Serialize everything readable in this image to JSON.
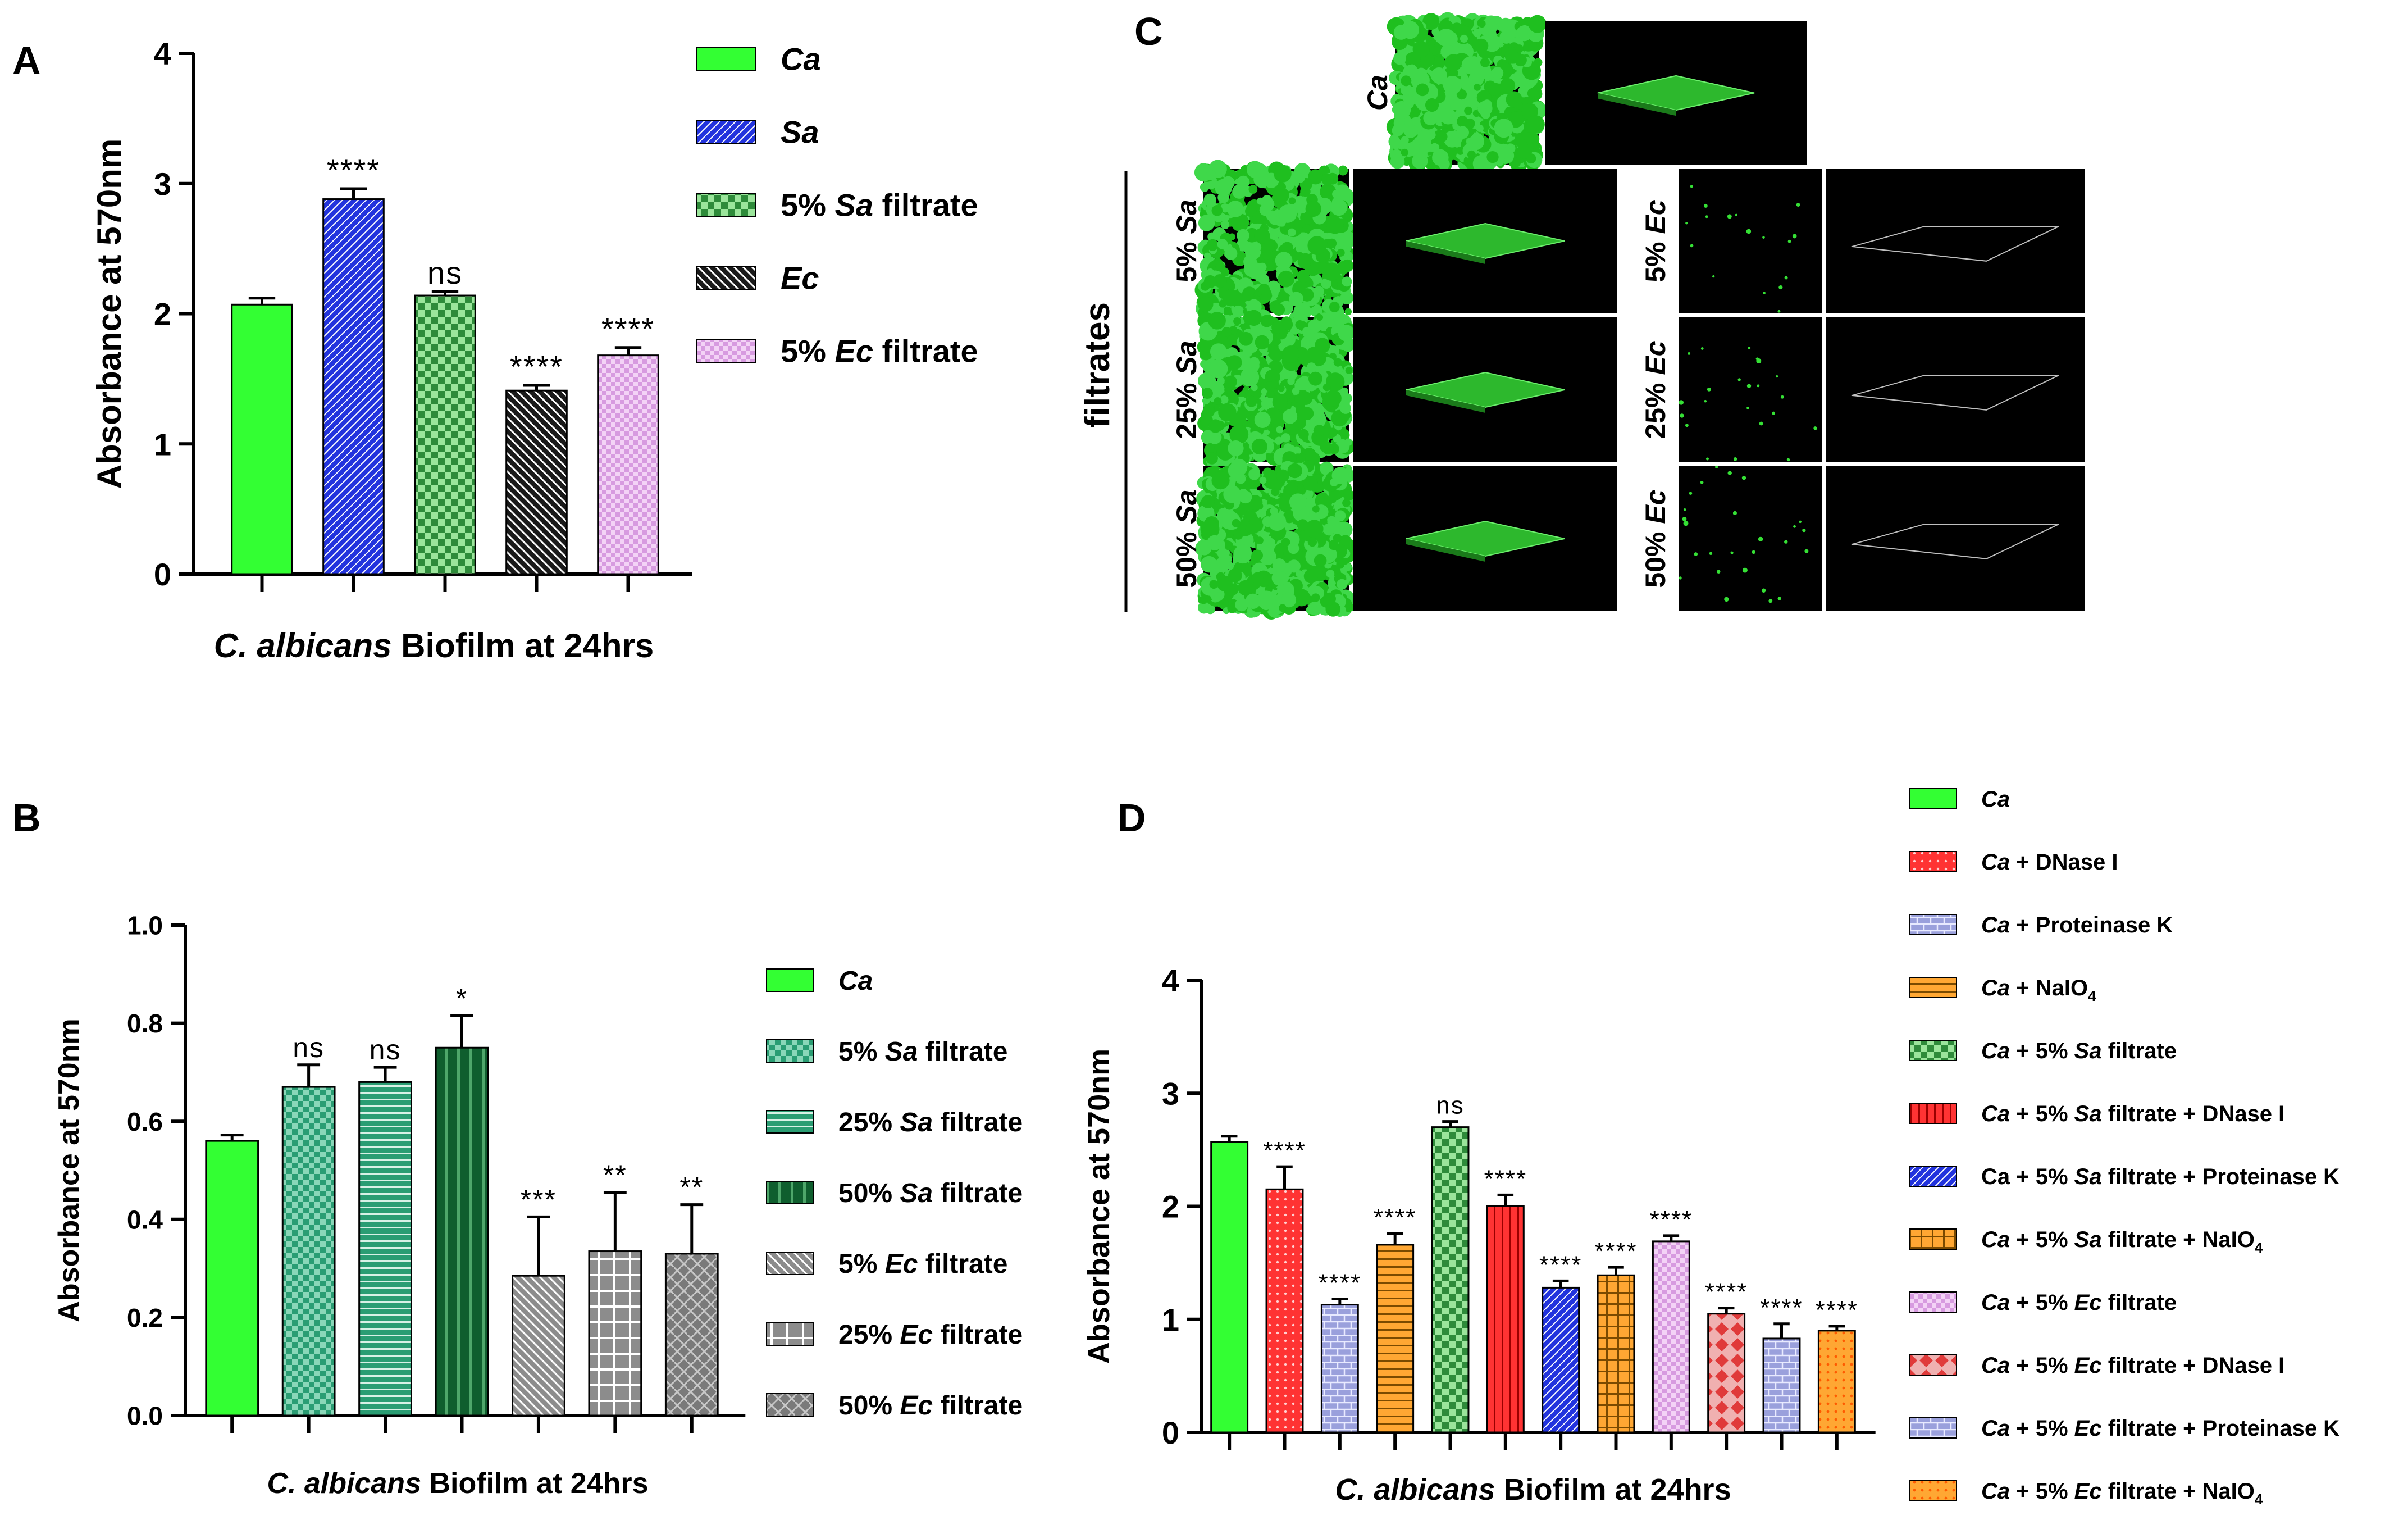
{
  "panels": {
    "A": "A",
    "B": "B",
    "C": "C",
    "D": "D"
  },
  "colors": {
    "ca_green": "#33ff33",
    "sa_blue": "#2233dd",
    "checker_green": "#2e8b3a",
    "teal": "#2a9d73",
    "dark_green": "#0f5e2e",
    "gray": "#8c8c8c",
    "black": "#1a1a1a",
    "pink": "#d79be0",
    "red": "#ff3333",
    "lavender": "#9aa0dc",
    "orange": "#ffa733",
    "confocal_bg": "#000000",
    "confocal_green": "#1fbf1f"
  },
  "chart_data": [
    {
      "panel": "A",
      "type": "bar",
      "categories": [
        "Ca",
        "Sa",
        "5% Sa filtrate",
        "Ec",
        "5% Ec filtrate"
      ],
      "values": [
        2.07,
        2.88,
        2.14,
        1.41,
        1.68
      ],
      "errors": [
        0.05,
        0.08,
        0.03,
        0.04,
        0.06
      ],
      "significance": [
        "",
        "****",
        "ns",
        "****",
        "****"
      ],
      "patterns": [
        "solid-green",
        "hatch-blue",
        "checker-green",
        "hatch-black",
        "checker-pink"
      ],
      "legend": [
        {
          "italic": "Ca",
          "rest": ""
        },
        {
          "italic": "Sa",
          "rest": ""
        },
        {
          "prefix": "5% ",
          "italic": "Sa",
          "rest": " filtrate"
        },
        {
          "italic": "Ec",
          "rest": ""
        },
        {
          "prefix": "5% ",
          "italic": "Ec",
          "rest": " filtrate"
        }
      ],
      "ylabel": "Absorbance at 570nm",
      "xlabel_italic": "C. albicans",
      "xlabel_rest": " Biofilm at 24hrs",
      "ylim": [
        0,
        4
      ],
      "yticks": [
        "0",
        "1",
        "2",
        "3",
        "4"
      ]
    },
    {
      "panel": "B",
      "type": "bar",
      "categories": [
        "Ca",
        "5% Sa filtrate",
        "25% Sa filtrate",
        "50% Sa filtrate",
        "5% Ec filtrate",
        "25% Ec filtrate",
        "50% Ec filtrate"
      ],
      "values": [
        0.56,
        0.67,
        0.68,
        0.75,
        0.285,
        0.335,
        0.33
      ],
      "errors": [
        0.012,
        0.045,
        0.03,
        0.065,
        0.12,
        0.12,
        0.1
      ],
      "significance": [
        "",
        "ns",
        "ns",
        "*",
        "***",
        "**",
        "**"
      ],
      "patterns": [
        "solid-green",
        "checker-teal",
        "hlines-teal",
        "vlines-darkgreen",
        "hatch-gray",
        "grid-gray",
        "weave-gray"
      ],
      "legend": [
        {
          "italic": "Ca",
          "rest": ""
        },
        {
          "prefix": "5% ",
          "italic": "Sa",
          "rest": " filtrate"
        },
        {
          "prefix": "25% ",
          "italic": "Sa",
          "rest": " filtrate"
        },
        {
          "prefix": "50% ",
          "italic": "Sa",
          "rest": " filtrate"
        },
        {
          "prefix": "5% ",
          "italic": "Ec",
          "rest": " filtrate"
        },
        {
          "prefix": "25% ",
          "italic": "Ec",
          "rest": " filtrate"
        },
        {
          "prefix": "50% ",
          "italic": "Ec",
          "rest": " filtrate"
        }
      ],
      "ylabel": "Absorbance at 570nm",
      "xlabel_italic": "C. albicans",
      "xlabel_rest": " Biofilm at 24hrs",
      "ylim": [
        0,
        1
      ],
      "yticks": [
        "0.0",
        "0.2",
        "0.4",
        "0.6",
        "0.8",
        "1.0"
      ]
    },
    {
      "panel": "D",
      "type": "bar",
      "categories": [
        "Ca",
        "Ca + DNase I",
        "Ca + Proteinase K",
        "Ca + NaIO4",
        "Ca + 5% Sa filtrate",
        "Ca + 5% Sa filtrate + DNase I",
        "Ca + 5% Sa filtrate + Proteinase K",
        "Ca + 5% Sa filtrate + NaIO4",
        "Ca + 5% Ec filtrate",
        "Ca + 5% Ec filtrate + DNase I",
        "Ca + 5% Ec filtrate + Proteinase K",
        "Ca + 5% Ec filtrate + NaIO4"
      ],
      "values": [
        2.57,
        2.15,
        1.13,
        1.66,
        2.7,
        2.0,
        1.28,
        1.39,
        1.69,
        1.05,
        0.83,
        0.9
      ],
      "errors": [
        0.05,
        0.2,
        0.05,
        0.1,
        0.05,
        0.1,
        0.06,
        0.07,
        0.05,
        0.05,
        0.13,
        0.04
      ],
      "significance": [
        "",
        "****",
        "****",
        "****",
        "ns",
        "****",
        "****",
        "****",
        "****",
        "****",
        "****",
        "****"
      ],
      "patterns": [
        "solid-green",
        "dots-red",
        "bricks-lavender",
        "hlines-orange",
        "checker-green",
        "vlines-red",
        "hatch-blue",
        "grid-orange",
        "checker-pink",
        "diamonds-red",
        "bricks-lavender",
        "dots-orange"
      ],
      "legend": [
        {
          "italic": "Ca",
          "rest": "",
          "bold": true
        },
        {
          "italic": "Ca",
          "rest": " + DNase I"
        },
        {
          "italic": "Ca",
          "rest": " + Proteinase K"
        },
        {
          "italic": "Ca",
          "rest": " + NaIO",
          "sub": "4"
        },
        {
          "italic": "Ca",
          "rest": " + 5% ",
          "italic2": "Sa",
          "rest2": " filtrate",
          "bold": true
        },
        {
          "italic": "Ca",
          "rest": " + 5% ",
          "italic2": "Sa",
          "rest2": " filtrate + DNase I"
        },
        {
          "prefix": "Ca + 5% ",
          "italic": "Sa",
          "rest": " filtrate + Proteinase K"
        },
        {
          "italic": "Ca",
          "rest": " + 5% ",
          "italic2": "Sa",
          "rest2": " filtrate + NaIO",
          "sub": "4"
        },
        {
          "italic": "Ca",
          "rest": " + 5% ",
          "italic2": "Ec",
          "rest2": " filtrate"
        },
        {
          "italic": "Ca",
          "rest": " + 5% ",
          "italic2": "Ec",
          "rest2": " filtrate + DNase I"
        },
        {
          "italic": "Ca",
          "rest": " + 5% ",
          "italic2": "Ec",
          "rest2": " filtrate + Proteinase K",
          "bold": true
        },
        {
          "italic": "Ca",
          "rest": " + 5% ",
          "italic2": "Ec",
          "rest2": " filtrate + NaIO",
          "sub": "4"
        }
      ],
      "ylabel": "Absorbance at 570nm",
      "xlabel_italic": "C. albicans",
      "xlabel_rest": " Biofilm at 24hrs",
      "ylim": [
        0,
        4
      ],
      "yticks": [
        "0",
        "1",
        "2",
        "3",
        "4"
      ]
    }
  ],
  "panel_c": {
    "ca_label": "Ca",
    "filtrates_label": "filtrates",
    "sa_rows": [
      {
        "prefix": "5% ",
        "italic": "Sa",
        "density": 0.55
      },
      {
        "prefix": "25% ",
        "italic": "Sa",
        "density": 0.65
      },
      {
        "prefix": "50% ",
        "italic": "Sa",
        "density": 0.9
      }
    ],
    "ec_rows": [
      {
        "prefix": "5% ",
        "italic": "Ec",
        "density": 0.01
      },
      {
        "prefix": "25% ",
        "italic": "Ec",
        "density": 0.015
      },
      {
        "prefix": "50% ",
        "italic": "Ec",
        "density": 0.02
      }
    ]
  }
}
